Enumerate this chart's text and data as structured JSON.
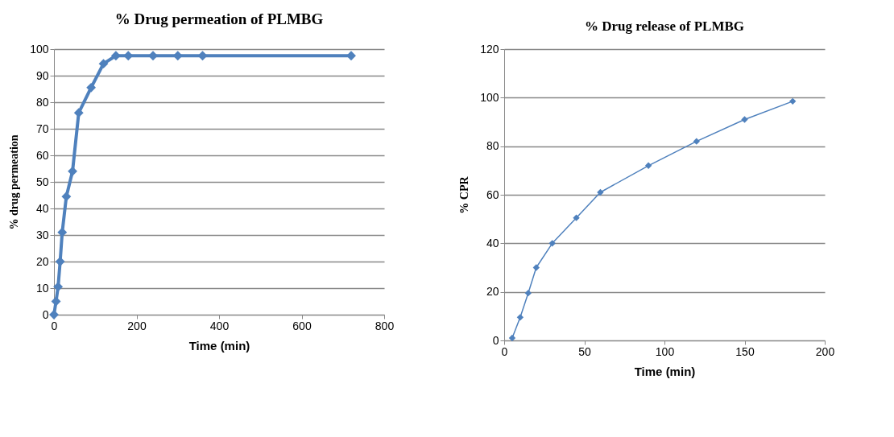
{
  "chart_data": [
    {
      "type": "line",
      "title": "% Drug permeation  of PLMBG",
      "xlabel": "Time (min)",
      "ylabel": "% drug permeation",
      "x": [
        0,
        5,
        10,
        15,
        20,
        30,
        45,
        60,
        90,
        120,
        150,
        180,
        240,
        300,
        360,
        720
      ],
      "series": [
        {
          "color": "#4f81bd",
          "values": [
            0,
            5,
            10.5,
            20,
            31,
            44.5,
            54,
            76,
            85.5,
            94.5,
            97.5,
            97.5,
            97.5,
            97.5,
            97.5,
            97.5
          ]
        }
      ],
      "xlim": [
        0,
        800
      ],
      "xticks": [
        0,
        200,
        400,
        600,
        800
      ],
      "ylim": [
        0,
        100
      ],
      "yticks": [
        0,
        10,
        20,
        30,
        40,
        50,
        60,
        70,
        80,
        90,
        100
      ],
      "grid": "y",
      "marker": "diamond",
      "line_style": "solid",
      "legend": false
    },
    {
      "type": "line",
      "title": "% Drug release of PLMBG",
      "xlabel": "Time (min)",
      "ylabel": "% CPR",
      "x": [
        5,
        10,
        15,
        20,
        30,
        45,
        60,
        90,
        120,
        150,
        180
      ],
      "series": [
        {
          "color": "#4f81bd",
          "values": [
            1,
            9.5,
            19.5,
            30,
            40,
            50.5,
            61,
            72,
            82,
            91,
            98.5
          ]
        }
      ],
      "xlim": [
        0,
        200
      ],
      "xticks": [
        0,
        50,
        100,
        150,
        200
      ],
      "ylim": [
        0,
        120
      ],
      "yticks": [
        0,
        20,
        40,
        60,
        80,
        100,
        120
      ],
      "grid": "y",
      "marker": "diamond",
      "line_style": "solid",
      "legend": false
    }
  ]
}
